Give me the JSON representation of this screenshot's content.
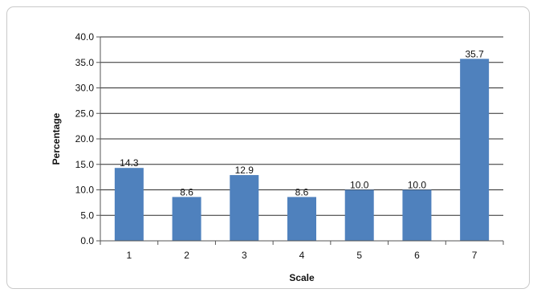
{
  "chart_data": {
    "type": "bar",
    "categories": [
      "1",
      "2",
      "3",
      "4",
      "5",
      "6",
      "7"
    ],
    "values": [
      14.3,
      8.6,
      12.9,
      8.6,
      10.0,
      10.0,
      35.7
    ],
    "data_labels": [
      "14.3",
      "8.6",
      "12.9",
      "8.6",
      "10.0",
      "10.0",
      "35.7"
    ],
    "title": "",
    "xlabel": "Scale",
    "ylabel": "Percentage",
    "ylim": [
      0,
      40
    ],
    "yticks": [
      0,
      5,
      10,
      15,
      20,
      25,
      30,
      35,
      40
    ],
    "ytick_labels": [
      "0.0",
      "5.0",
      "10.0",
      "15.0",
      "20.0",
      "25.0",
      "30.0",
      "35.0",
      "40.0"
    ],
    "grid": true,
    "legend": "none",
    "bar_color": "#4f81bd",
    "grid_color": "#2b2b2b"
  }
}
